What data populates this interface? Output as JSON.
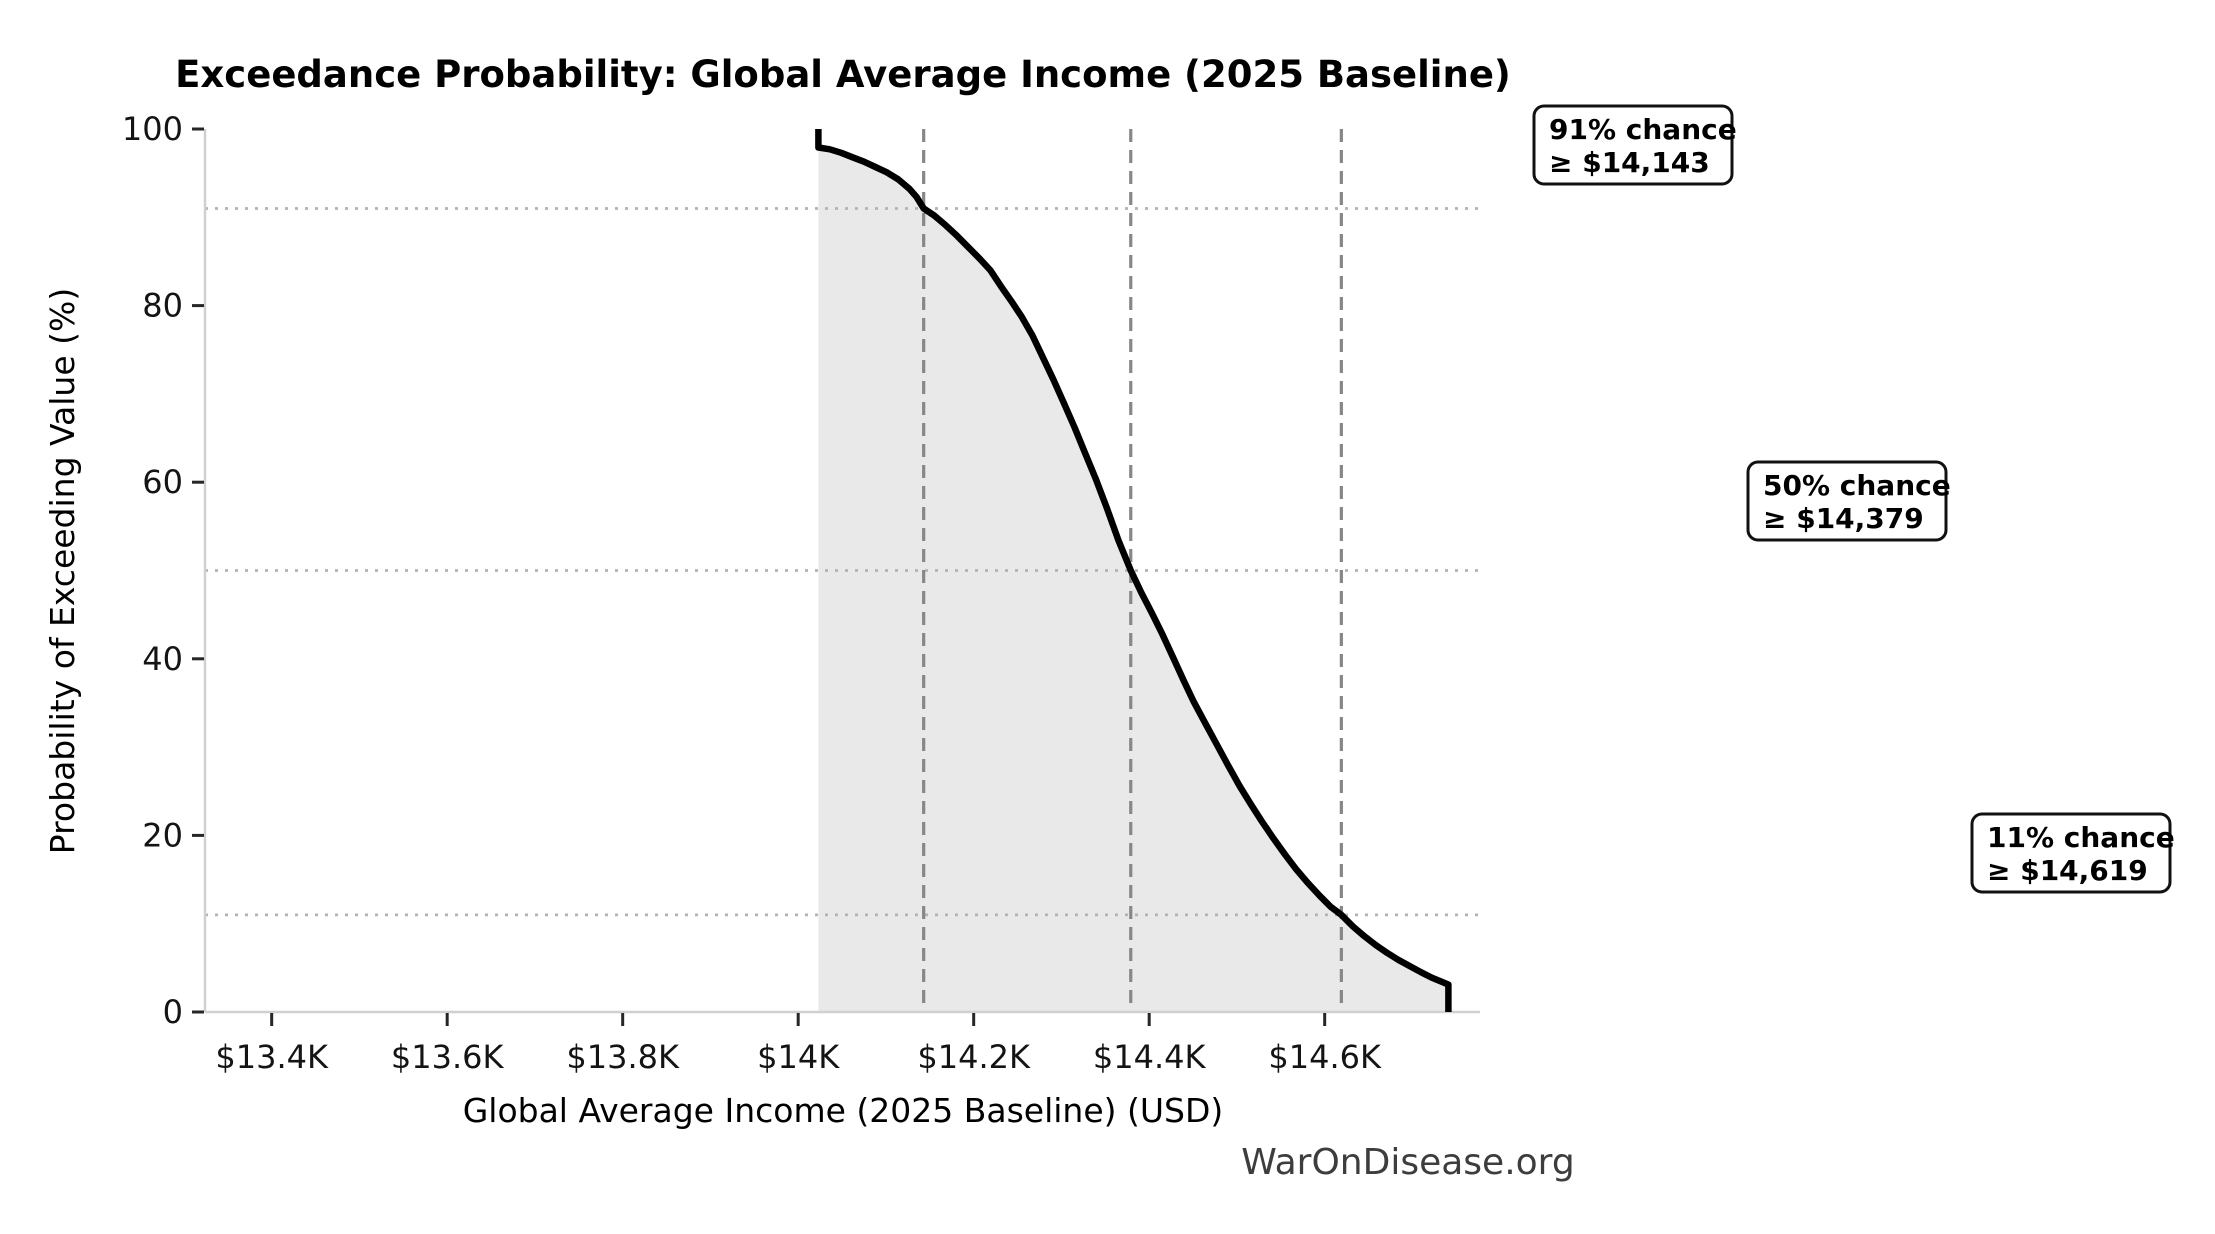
{
  "page": {
    "background": "#ffffff"
  },
  "watermark": {
    "text": "WarOnDisease.org",
    "color": "#3d3d3d"
  },
  "colors": {
    "curve": "#000000",
    "area_fill": "#e9e9e9",
    "dashed_vline": "#878787",
    "dotted_hline": "#b3b3b3",
    "spine": "#d0d0d0",
    "tick": "#262626",
    "annotation_border": "#111111",
    "annotation_bg": "#ffffff"
  },
  "chart_data": {
    "type": "area",
    "title": "Exceedance Probability: Global Average Income (2025 Baseline)",
    "xlabel": "Global Average Income (2025 Baseline) (USD)",
    "ylabel": "Probability of Exceeding Value (%)",
    "xlim": [
      13324,
      14777
    ],
    "ylim": [
      0,
      100
    ],
    "grid": "off",
    "legend_position": "none",
    "x_ticks": [
      {
        "value": 13400,
        "label": "$13.4K"
      },
      {
        "value": 13600,
        "label": "$13.6K"
      },
      {
        "value": 13800,
        "label": "$13.8K"
      },
      {
        "value": 14000,
        "label": "$14K"
      },
      {
        "value": 14200,
        "label": "$14.2K"
      },
      {
        "value": 14400,
        "label": "$14.4K"
      },
      {
        "value": 14600,
        "label": "$14.6K"
      }
    ],
    "y_ticks": [
      {
        "value": 0,
        "label": "0"
      },
      {
        "value": 20,
        "label": "20"
      },
      {
        "value": 40,
        "label": "40"
      },
      {
        "value": 60,
        "label": "60"
      },
      {
        "value": 80,
        "label": "80"
      },
      {
        "value": 100,
        "label": "100"
      }
    ],
    "series": [
      {
        "name": "Exceedance probability curve",
        "type": "line",
        "filled_to_zero": true,
        "points": [
          [
            14023,
            100
          ],
          [
            14023,
            97.9
          ],
          [
            14036,
            97.7
          ],
          [
            14049,
            97.3
          ],
          [
            14062,
            96.8
          ],
          [
            14075,
            96.3
          ],
          [
            14088,
            95.7
          ],
          [
            14101,
            95.1
          ],
          [
            14114,
            94.3
          ],
          [
            14127,
            93.2
          ],
          [
            14135,
            92.3
          ],
          [
            14143,
            91.0
          ],
          [
            14155,
            90.2
          ],
          [
            14168,
            89.1
          ],
          [
            14181,
            87.9
          ],
          [
            14194,
            86.6
          ],
          [
            14207,
            85.3
          ],
          [
            14219,
            84.0
          ],
          [
            14231,
            82.2
          ],
          [
            14243,
            80.5
          ],
          [
            14255,
            78.7
          ],
          [
            14267,
            76.6
          ],
          [
            14279,
            74.1
          ],
          [
            14291,
            71.6
          ],
          [
            14303,
            68.9
          ],
          [
            14315,
            66.2
          ],
          [
            14327,
            63.3
          ],
          [
            14339,
            60.4
          ],
          [
            14352,
            57.0
          ],
          [
            14365,
            53.4
          ],
          [
            14379,
            50.0
          ],
          [
            14391,
            47.5
          ],
          [
            14403,
            45.2
          ],
          [
            14415,
            42.8
          ],
          [
            14427,
            40.2
          ],
          [
            14439,
            37.6
          ],
          [
            14451,
            35.1
          ],
          [
            14464,
            32.7
          ],
          [
            14477,
            30.3
          ],
          [
            14490,
            27.9
          ],
          [
            14503,
            25.6
          ],
          [
            14516,
            23.5
          ],
          [
            14529,
            21.5
          ],
          [
            14542,
            19.6
          ],
          [
            14555,
            17.8
          ],
          [
            14568,
            16.1
          ],
          [
            14581,
            14.6
          ],
          [
            14594,
            13.2
          ],
          [
            14607,
            11.9
          ],
          [
            14619,
            11.0
          ],
          [
            14632,
            9.7
          ],
          [
            14645,
            8.6
          ],
          [
            14658,
            7.6
          ],
          [
            14671,
            6.7
          ],
          [
            14684,
            5.9
          ],
          [
            14697,
            5.2
          ],
          [
            14710,
            4.5
          ],
          [
            14722,
            3.9
          ],
          [
            14734,
            3.4
          ],
          [
            14741,
            3.1
          ],
          [
            14741,
            0
          ]
        ]
      }
    ],
    "reference_lines": {
      "vertical_dashed": [
        {
          "value": 14143,
          "label": "$14,143"
        },
        {
          "value": 14379,
          "label": "$14,379"
        },
        {
          "value": 14619,
          "label": "$14,619"
        }
      ],
      "horizontal_dotted": [
        {
          "value": 91
        },
        {
          "value": 50
        },
        {
          "value": 11
        }
      ]
    },
    "annotations": [
      {
        "line1": "91% chance",
        "line2": "≥ $14,143"
      },
      {
        "line1": "50% chance",
        "line2": "≥ $14,379"
      },
      {
        "line1": "11% chance",
        "line2": "≥ $14,619"
      }
    ]
  }
}
